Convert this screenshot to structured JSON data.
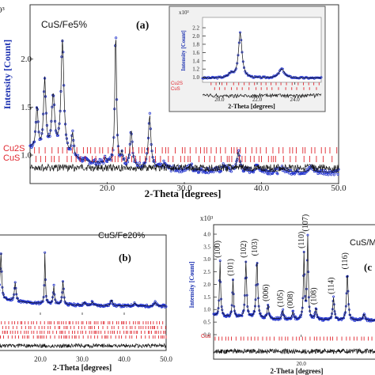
{
  "colors": {
    "data": "#2233cc",
    "fit": "#111111",
    "reflection": "#e0262e",
    "diff": "#111111",
    "ylabel": "#1a2fb0"
  },
  "chart_data": [
    {
      "id": "a",
      "type": "line",
      "panel_label": "(a)",
      "sample": "CuS/Fe5%",
      "exponent": "0³",
      "ylabel": "Intensity [Count]",
      "xlabel": "2-Theta [degrees]",
      "xlim": [
        10,
        50
      ],
      "ylim": [
        0.72,
        2.55
      ],
      "xticks": [
        "20.0",
        "30.0",
        "40.0",
        "50.0"
      ],
      "yticks": [
        "1.0",
        "1.5",
        "2.0"
      ],
      "phases": [
        "Cu2S",
        "CuS"
      ],
      "peaks": [
        {
          "x": 10.9,
          "h": 0.45,
          "w": 0.32
        },
        {
          "x": 11.9,
          "h": 0.75,
          "w": 0.35
        },
        {
          "x": 13.0,
          "h": 0.6,
          "w": 0.45
        },
        {
          "x": 14.2,
          "h": 1.2,
          "w": 0.45
        },
        {
          "x": 15.5,
          "h": 0.25,
          "w": 0.3
        },
        {
          "x": 19.8,
          "h": 0.05,
          "w": 0.4
        },
        {
          "x": 21.1,
          "h": 1.45,
          "w": 0.25
        },
        {
          "x": 21.9,
          "h": 0.12,
          "w": 0.3
        },
        {
          "x": 23.1,
          "h": 0.38,
          "w": 0.35
        },
        {
          "x": 25.5,
          "h": 0.55,
          "w": 0.38
        },
        {
          "x": 27.4,
          "h": 0.05,
          "w": 0.5
        },
        {
          "x": 30.8,
          "h": 0.06,
          "w": 0.4
        },
        {
          "x": 35.2,
          "h": 0.06,
          "w": 0.5
        },
        {
          "x": 37.0,
          "h": 0.2,
          "w": 0.45
        },
        {
          "x": 39.5,
          "h": 0.06,
          "w": 0.6
        },
        {
          "x": 42.8,
          "h": 0.04,
          "w": 0.6
        },
        {
          "x": 46.5,
          "h": 0.05,
          "w": 0.6
        }
      ],
      "baseline": {
        "base": 0.82,
        "decay": 0.25,
        "tau": 9
      }
    },
    {
      "id": "inset",
      "type": "line",
      "exponent": "x10³",
      "ylabel": "Intensity [Count]",
      "xlabel": "2-Theta [degrees]",
      "xlim": [
        19.1,
        25.4
      ],
      "ylim": [
        0.88,
        2.45
      ],
      "xticks": [
        "20.0",
        "22.0",
        "24.0"
      ],
      "yticks": [
        "1.0",
        "1.2",
        "1.4",
        "1.6",
        "1.8",
        "2.0",
        "2.2"
      ],
      "phases": [
        "Cu2S",
        "CuS"
      ],
      "peaks": [
        {
          "x": 21.1,
          "h": 1.1,
          "w": 0.22
        },
        {
          "x": 20.6,
          "h": 0.1,
          "w": 0.3
        },
        {
          "x": 23.3,
          "h": 0.22,
          "w": 0.35
        }
      ],
      "baseline": {
        "base": 0.98,
        "decay": 0.0,
        "tau": 9
      }
    },
    {
      "id": "b",
      "type": "line",
      "panel_label": "(b)",
      "sample": "CuS/Fe20%",
      "ylabel": "",
      "xlabel": "2-Theta [degrees]",
      "xlim": [
        10,
        50
      ],
      "ylim": [
        0.0,
        1.15
      ],
      "xticks": [
        "20.0",
        "30.0",
        "40.0",
        "50.0"
      ],
      "yticks": [],
      "phases": [],
      "peaks": [
        {
          "x": 10.6,
          "h": 0.75,
          "w": 0.4
        },
        {
          "x": 14.0,
          "h": 0.3,
          "w": 0.45
        },
        {
          "x": 21.1,
          "h": 0.85,
          "w": 0.25
        },
        {
          "x": 23.2,
          "h": 0.3,
          "w": 0.35
        },
        {
          "x": 25.4,
          "h": 0.38,
          "w": 0.38
        },
        {
          "x": 30.5,
          "h": 0.05,
          "w": 0.5
        },
        {
          "x": 32.4,
          "h": 0.06,
          "w": 0.5
        },
        {
          "x": 37.0,
          "h": 0.1,
          "w": 0.5
        },
        {
          "x": 42.5,
          "h": 0.05,
          "w": 0.6
        },
        {
          "x": 47.4,
          "h": 0.06,
          "w": 0.6
        }
      ],
      "baseline": {
        "base": 0.1,
        "decay": 0.12,
        "tau": 10
      }
    },
    {
      "id": "c",
      "type": "line",
      "panel_label": "(c",
      "sample": "CuS/M",
      "exponent": "x10³",
      "ylabel": "Intensity [Count]",
      "xlabel": "2-Theta [degrees]",
      "xlim": [
        10.5,
        28
      ],
      "ylim": [
        0.0,
        4.0
      ],
      "xticks": [
        "20.0",
        "30.0",
        "40.0",
        "50.0"
      ],
      "yticks": [
        "0.0",
        "0.5",
        "1.0",
        "1.5",
        "2.0",
        "2.5",
        "3.0",
        "3.5",
        "4.0"
      ],
      "phase_label": "Cus",
      "hkl": [
        "(100)",
        "(101)",
        "(102)",
        "(103)",
        "(006)",
        "(105)",
        "(008)",
        "(107)",
        "(108)",
        "(110)",
        "(114)",
        "(116)"
      ],
      "peaks": [
        {
          "x": 11.2,
          "h": 2.2,
          "w": 0.15
        },
        {
          "x": 12.6,
          "h": 1.5,
          "w": 0.15
        },
        {
          "x": 14.0,
          "h": 2.25,
          "w": 0.18
        },
        {
          "x": 15.2,
          "h": 2.35,
          "w": 0.2
        },
        {
          "x": 16.4,
          "h": 0.55,
          "w": 0.18
        },
        {
          "x": 18.0,
          "h": 0.35,
          "w": 0.2
        },
        {
          "x": 19.1,
          "h": 0.3,
          "w": 0.2
        },
        {
          "x": 20.3,
          "h": 2.6,
          "w": 0.15
        },
        {
          "x": 20.7,
          "h": 3.3,
          "w": 0.15
        },
        {
          "x": 21.6,
          "h": 0.45,
          "w": 0.2
        },
        {
          "x": 23.5,
          "h": 0.9,
          "w": 0.2
        },
        {
          "x": 25.0,
          "h": 1.9,
          "w": 0.2
        },
        {
          "x": 26.8,
          "h": 0.25,
          "w": 0.25
        }
      ],
      "baseline": {
        "base": 0.55,
        "decay": 0.2,
        "tau": 6
      }
    }
  ]
}
